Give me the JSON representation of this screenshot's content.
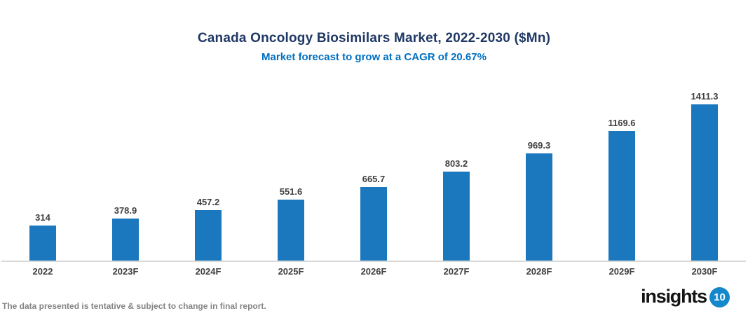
{
  "chart": {
    "title": "Canada Oncology Biosimilars Market, 2022-2030 ($Mn)",
    "subtitle": "Market forecast to grow at a CAGR of 20.67%"
  },
  "chart_data": {
    "type": "bar",
    "categories": [
      "2022",
      "2023F",
      "2024F",
      "2025F",
      "2026F",
      "2027F",
      "2028F",
      "2029F",
      "2030F"
    ],
    "values": [
      314,
      378.9,
      457.2,
      551.6,
      665.7,
      803.2,
      969.3,
      1169.6,
      1411.3
    ],
    "title": "Canada Oncology Biosimilars Market, 2022-2030 ($Mn)",
    "subtitle": "Market forecast to grow at a CAGR of 20.67%",
    "xlabel": "",
    "ylabel": "",
    "ylim": [
      0,
      1500
    ],
    "grid": false,
    "legend": false,
    "value_labels": true,
    "bar_color": "#1B78BE"
  },
  "colors": {
    "title": "#1F3864",
    "subtitle": "#0070C0",
    "bar": "#1B78BE",
    "data_label": "#404040",
    "axis_line": "#D9D9D9",
    "disclaimer": "#848484",
    "logo_circle": "#1588CB"
  },
  "footer": {
    "disclaimer": "The data presented is tentative & subject to change in final report.",
    "logo_text": "insights",
    "logo_number": "10"
  }
}
